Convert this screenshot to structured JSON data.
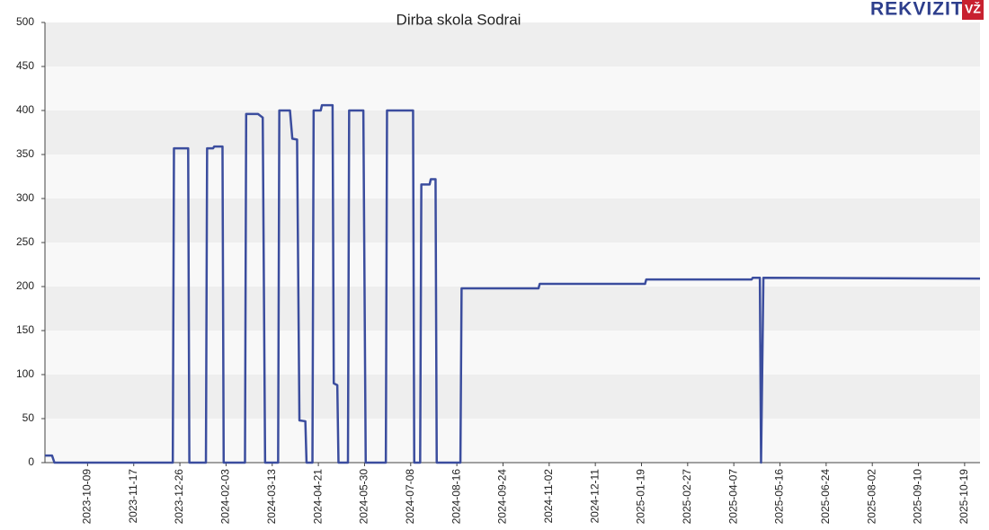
{
  "brand": {
    "name": "REKVIZITAI",
    "badge": "VŽ"
  },
  "chart_data": {
    "type": "line",
    "title": "Dirba skola Sodrai",
    "x": [
      "2023-09-03",
      "2023-09-09",
      "2023-09-11",
      "2023-12-20",
      "2023-12-21",
      "2024-01-02",
      "2024-01-03",
      "2024-01-17",
      "2024-01-18",
      "2024-01-23",
      "2024-01-24",
      "2024-01-31",
      "2024-02-01",
      "2024-02-19",
      "2024-02-20",
      "2024-03-01",
      "2024-03-05",
      "2024-03-07",
      "2024-03-18",
      "2024-03-19",
      "2024-03-28",
      "2024-03-30",
      "2024-04-03",
      "2024-04-05",
      "2024-04-10",
      "2024-04-11",
      "2024-04-16",
      "2024-04-17",
      "2024-04-23",
      "2024-04-24",
      "2024-05-03",
      "2024-05-04",
      "2024-05-07",
      "2024-05-08",
      "2024-05-16",
      "2024-05-17",
      "2024-05-29",
      "2024-05-31",
      "2024-06-17",
      "2024-06-18",
      "2024-07-10",
      "2024-07-11",
      "2024-07-16",
      "2024-07-17",
      "2024-07-24",
      "2024-07-25",
      "2024-07-29",
      "2024-07-30",
      "2024-08-19",
      "2024-08-20",
      "2024-10-24",
      "2024-10-25",
      "2025-01-22",
      "2025-01-23",
      "2025-04-22",
      "2025-04-23",
      "2025-04-29",
      "2025-04-30",
      "2025-05-02",
      "2025-11-01"
    ],
    "series": [
      {
        "name": "Dirba skola Sodrai",
        "color": "#3b4d9e",
        "values": [
          8,
          8,
          0,
          0,
          357,
          357,
          0,
          0,
          357,
          357,
          359,
          359,
          0,
          0,
          396,
          396,
          392,
          0,
          0,
          400,
          400,
          368,
          367,
          48,
          47,
          0,
          0,
          400,
          400,
          406,
          406,
          90,
          88,
          0,
          0,
          400,
          400,
          0,
          0,
          400,
          400,
          0,
          0,
          316,
          316,
          322,
          322,
          0,
          0,
          198,
          198,
          203,
          203,
          208,
          208,
          210,
          210,
          0,
          210,
          209
        ]
      }
    ],
    "xlim": [
      "2023-09-03",
      "2025-11-01"
    ],
    "xticks": [
      "2023-10-09",
      "2023-11-17",
      "2023-12-26",
      "2024-02-03",
      "2024-03-13",
      "2024-04-21",
      "2024-05-30",
      "2024-07-08",
      "2024-08-16",
      "2024-09-24",
      "2024-11-02",
      "2024-12-11",
      "2025-01-19",
      "2025-02-27",
      "2025-04-07",
      "2025-05-16",
      "2025-06-24",
      "2025-08-02",
      "2025-09-10",
      "2025-10-19"
    ],
    "ylim": [
      0,
      500
    ],
    "yticks": [
      0,
      50,
      100,
      150,
      200,
      250,
      300,
      350,
      400,
      450,
      500
    ],
    "grid": true
  }
}
